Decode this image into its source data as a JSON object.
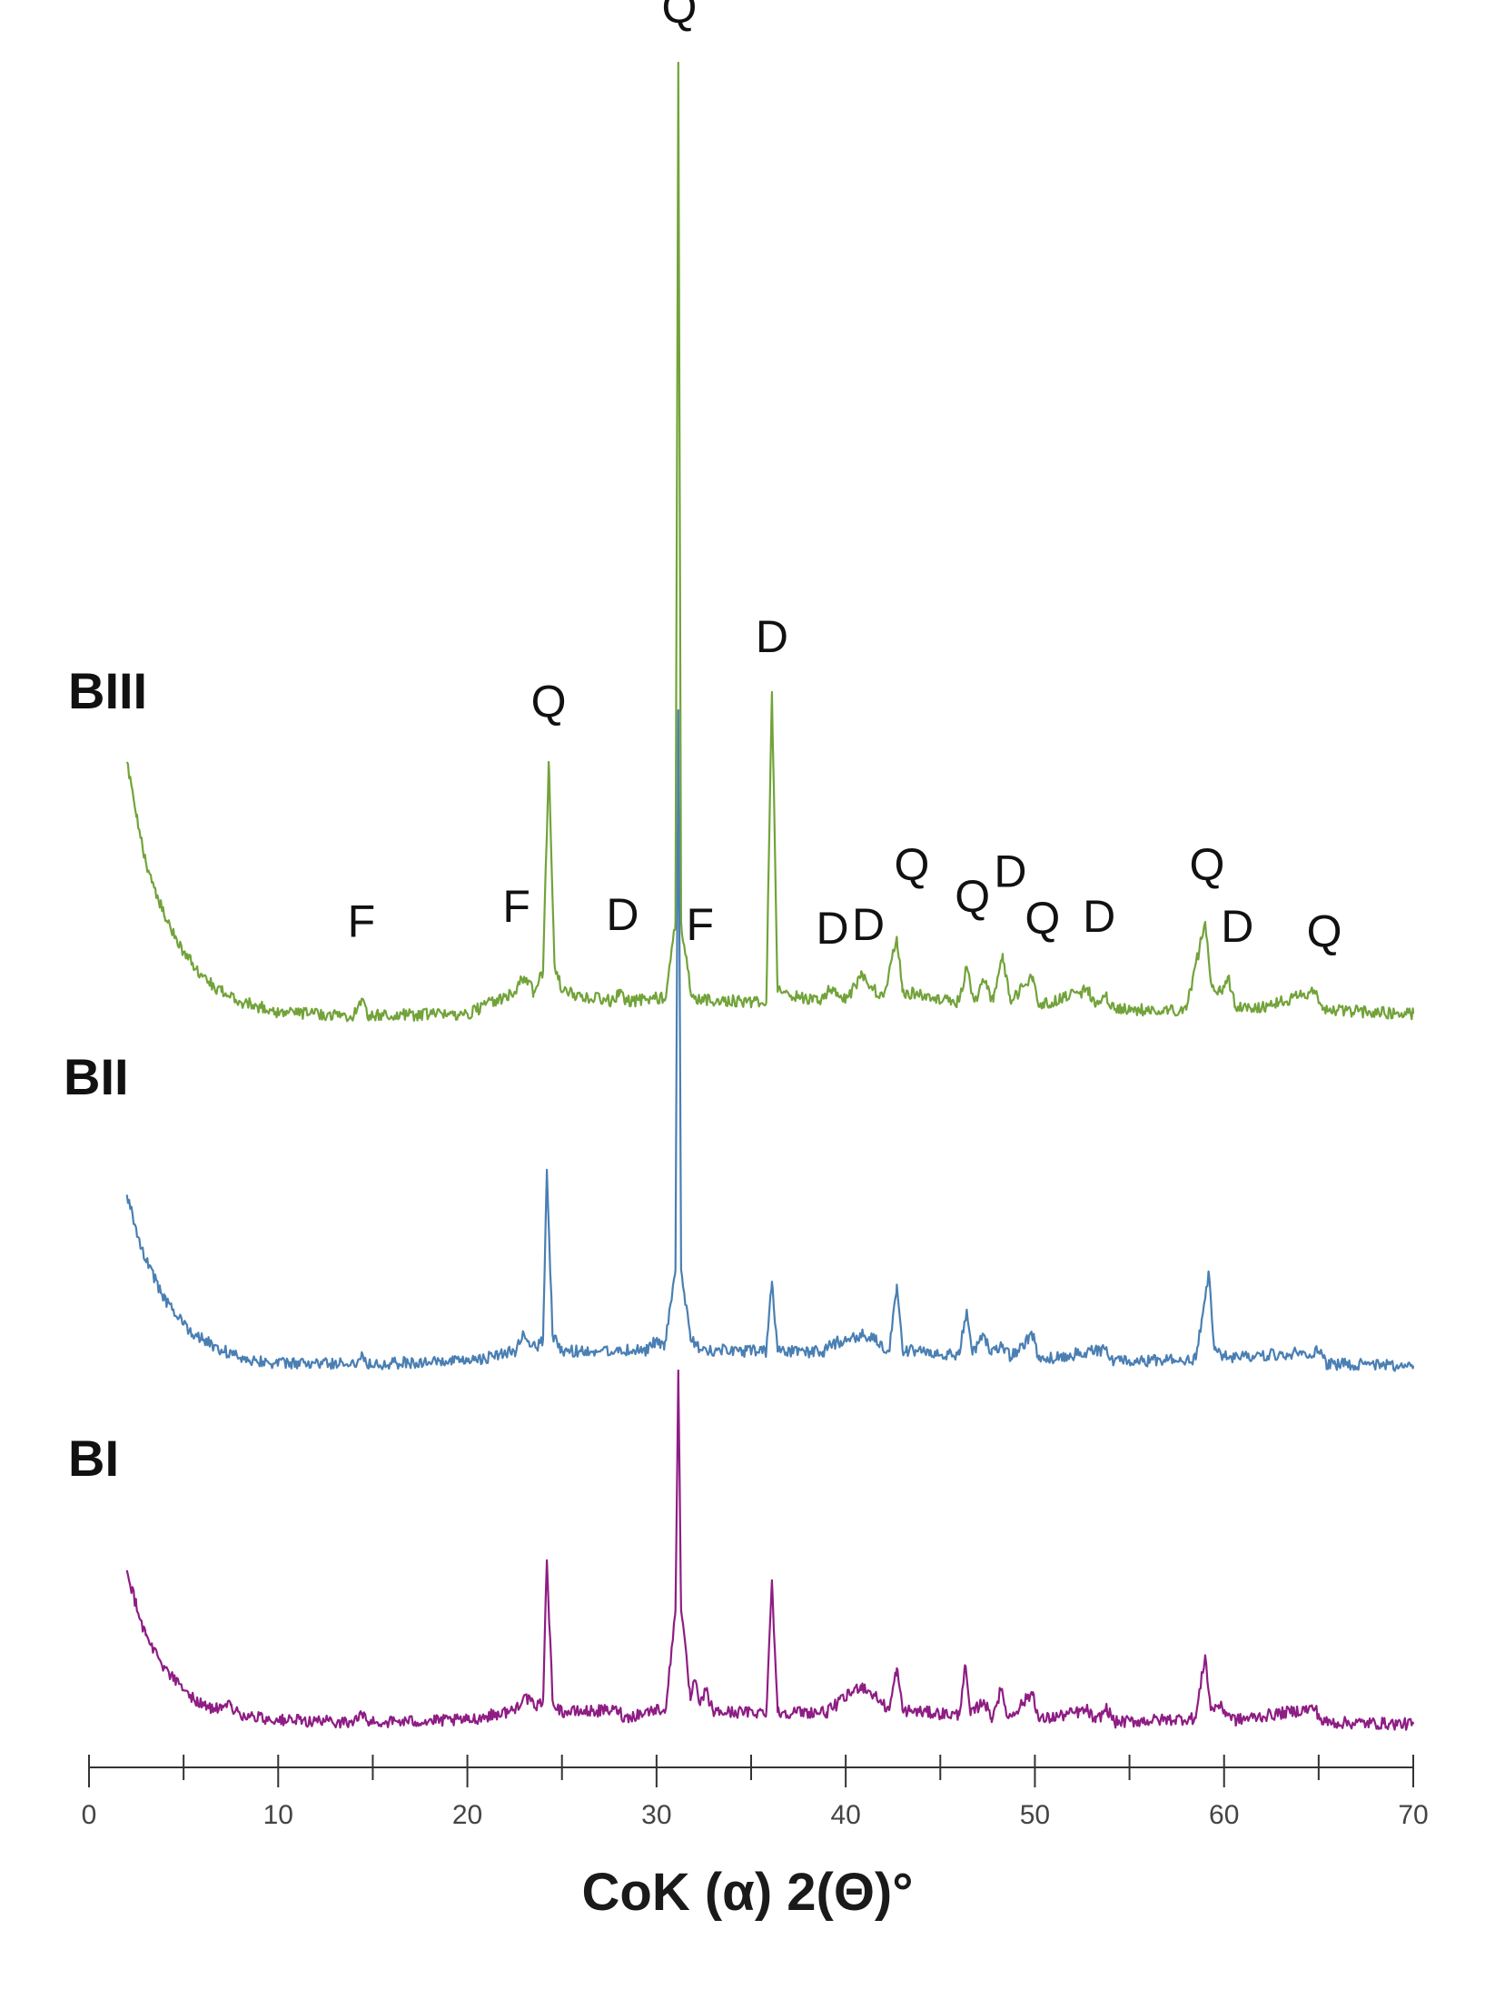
{
  "chart_data": {
    "type": "line",
    "title": "",
    "xlabel": "CoK (α) 2(Θ)°",
    "ylabel": "",
    "xlim": [
      0,
      70
    ],
    "x_ticks": [
      "0",
      "10",
      "20",
      "30",
      "40",
      "50",
      "60",
      "70"
    ],
    "grid": false,
    "legend": "none",
    "series": [
      {
        "name": "BIII",
        "color": "#72a33a",
        "baseline": 0.0,
        "points": [
          [
            2.0,
            0.26
          ],
          [
            2.5,
            0.205
          ],
          [
            3.0,
            0.16
          ],
          [
            4.0,
            0.105
          ],
          [
            5.0,
            0.07
          ],
          [
            6.0,
            0.045
          ],
          [
            7.0,
            0.03
          ],
          [
            8.0,
            0.02
          ],
          [
            10.0,
            0.01
          ],
          [
            14.0,
            0.006
          ],
          [
            14.4,
            0.022
          ],
          [
            14.8,
            0.006
          ],
          [
            20.0,
            0.008
          ],
          [
            22.5,
            0.03
          ],
          [
            23.0,
            0.045
          ],
          [
            23.5,
            0.03
          ],
          [
            24.0,
            0.05
          ],
          [
            24.3,
            0.26
          ],
          [
            24.6,
            0.06
          ],
          [
            25.0,
            0.03
          ],
          [
            27.8,
            0.02
          ],
          [
            28.0,
            0.032
          ],
          [
            28.3,
            0.02
          ],
          [
            30.5,
            0.025
          ],
          [
            31.0,
            0.1
          ],
          [
            31.15,
            0.96
          ],
          [
            31.3,
            0.1
          ],
          [
            31.8,
            0.03
          ],
          [
            32.2,
            0.022
          ],
          [
            35.8,
            0.02
          ],
          [
            36.1,
            0.33
          ],
          [
            36.4,
            0.03
          ],
          [
            38.5,
            0.02
          ],
          [
            39.2,
            0.032
          ],
          [
            40.0,
            0.022
          ],
          [
            40.8,
            0.045
          ],
          [
            41.3,
            0.035
          ],
          [
            42.0,
            0.025
          ],
          [
            42.7,
            0.085
          ],
          [
            43.0,
            0.03
          ],
          [
            46.0,
            0.02
          ],
          [
            46.4,
            0.055
          ],
          [
            46.8,
            0.02
          ],
          [
            47.3,
            0.04
          ],
          [
            47.8,
            0.02
          ],
          [
            48.3,
            0.068
          ],
          [
            48.7,
            0.02
          ],
          [
            49.9,
            0.045
          ],
          [
            50.2,
            0.015
          ],
          [
            52.8,
            0.032
          ],
          [
            53.2,
            0.015
          ],
          [
            53.8,
            0.025
          ],
          [
            54.2,
            0.012
          ],
          [
            58.0,
            0.012
          ],
          [
            59.0,
            0.1
          ],
          [
            59.3,
            0.04
          ],
          [
            59.8,
            0.03
          ],
          [
            60.2,
            0.045
          ],
          [
            60.6,
            0.015
          ],
          [
            62.0,
            0.015
          ],
          [
            64.8,
            0.03
          ],
          [
            65.2,
            0.012
          ],
          [
            70.0,
            0.008
          ]
        ]
      },
      {
        "name": "BII",
        "color": "#4a7fb3",
        "baseline": 0.0,
        "points": [
          [
            2.0,
            0.175
          ],
          [
            2.5,
            0.14
          ],
          [
            3.0,
            0.11
          ],
          [
            4.0,
            0.07
          ],
          [
            5.0,
            0.045
          ],
          [
            6.0,
            0.03
          ],
          [
            7.0,
            0.02
          ],
          [
            8.0,
            0.012
          ],
          [
            10.0,
            0.006
          ],
          [
            14.0,
            0.006
          ],
          [
            14.4,
            0.014
          ],
          [
            14.8,
            0.006
          ],
          [
            20.0,
            0.008
          ],
          [
            22.5,
            0.018
          ],
          [
            23.0,
            0.035
          ],
          [
            23.6,
            0.022
          ],
          [
            24.0,
            0.03
          ],
          [
            24.2,
            0.2
          ],
          [
            24.5,
            0.035
          ],
          [
            25.0,
            0.018
          ],
          [
            29.5,
            0.02
          ],
          [
            30.0,
            0.03
          ],
          [
            30.4,
            0.02
          ],
          [
            31.0,
            0.1
          ],
          [
            31.15,
            0.66
          ],
          [
            31.3,
            0.1
          ],
          [
            31.8,
            0.03
          ],
          [
            32.3,
            0.02
          ],
          [
            35.8,
            0.018
          ],
          [
            36.1,
            0.088
          ],
          [
            36.4,
            0.018
          ],
          [
            38.8,
            0.018
          ],
          [
            39.2,
            0.025
          ],
          [
            40.8,
            0.035
          ],
          [
            41.5,
            0.03
          ],
          [
            42.3,
            0.018
          ],
          [
            42.7,
            0.085
          ],
          [
            43.0,
            0.02
          ],
          [
            46.0,
            0.015
          ],
          [
            46.4,
            0.06
          ],
          [
            46.7,
            0.015
          ],
          [
            47.3,
            0.035
          ],
          [
            47.7,
            0.015
          ],
          [
            48.3,
            0.025
          ],
          [
            48.7,
            0.012
          ],
          [
            49.9,
            0.035
          ],
          [
            50.2,
            0.01
          ],
          [
            53.8,
            0.02
          ],
          [
            54.2,
            0.008
          ],
          [
            58.5,
            0.01
          ],
          [
            59.2,
            0.095
          ],
          [
            59.5,
            0.02
          ],
          [
            60.2,
            0.012
          ],
          [
            65.0,
            0.018
          ],
          [
            65.4,
            0.006
          ],
          [
            70.0,
            0.004
          ]
        ]
      },
      {
        "name": "BI",
        "color": "#8e1d84",
        "baseline": 0.0,
        "points": [
          [
            2.0,
            0.16
          ],
          [
            2.5,
            0.125
          ],
          [
            3.0,
            0.095
          ],
          [
            4.0,
            0.062
          ],
          [
            5.0,
            0.04
          ],
          [
            6.0,
            0.025
          ],
          [
            7.0,
            0.02
          ],
          [
            7.5,
            0.025
          ],
          [
            8.0,
            0.015
          ],
          [
            10.0,
            0.01
          ],
          [
            14.0,
            0.008
          ],
          [
            14.4,
            0.016
          ],
          [
            14.8,
            0.008
          ],
          [
            20.0,
            0.01
          ],
          [
            22.5,
            0.02
          ],
          [
            23.0,
            0.035
          ],
          [
            23.6,
            0.022
          ],
          [
            24.0,
            0.03
          ],
          [
            24.2,
            0.17
          ],
          [
            24.5,
            0.03
          ],
          [
            25.0,
            0.018
          ],
          [
            28.0,
            0.02
          ],
          [
            28.3,
            0.012
          ],
          [
            29.8,
            0.02
          ],
          [
            30.5,
            0.022
          ],
          [
            31.0,
            0.12
          ],
          [
            31.15,
            0.36
          ],
          [
            31.3,
            0.12
          ],
          [
            31.8,
            0.03
          ],
          [
            32.0,
            0.05
          ],
          [
            32.3,
            0.025
          ],
          [
            32.6,
            0.04
          ],
          [
            33.0,
            0.018
          ],
          [
            35.8,
            0.018
          ],
          [
            36.1,
            0.15
          ],
          [
            36.4,
            0.018
          ],
          [
            39.0,
            0.018
          ],
          [
            40.8,
            0.045
          ],
          [
            41.5,
            0.035
          ],
          [
            42.3,
            0.02
          ],
          [
            42.7,
            0.062
          ],
          [
            43.0,
            0.02
          ],
          [
            46.0,
            0.015
          ],
          [
            46.3,
            0.065
          ],
          [
            46.6,
            0.015
          ],
          [
            47.3,
            0.03
          ],
          [
            47.7,
            0.012
          ],
          [
            48.2,
            0.04
          ],
          [
            48.6,
            0.012
          ],
          [
            49.9,
            0.038
          ],
          [
            50.2,
            0.01
          ],
          [
            52.8,
            0.02
          ],
          [
            53.2,
            0.008
          ],
          [
            53.8,
            0.022
          ],
          [
            54.2,
            0.008
          ],
          [
            58.5,
            0.012
          ],
          [
            59.0,
            0.075
          ],
          [
            59.3,
            0.02
          ],
          [
            59.7,
            0.025
          ],
          [
            60.1,
            0.018
          ],
          [
            60.6,
            0.01
          ],
          [
            64.8,
            0.022
          ],
          [
            65.2,
            0.008
          ],
          [
            70.0,
            0.006
          ]
        ]
      }
    ],
    "annotations": [
      {
        "text": "Q",
        "x": 31.2,
        "y": 1.0
      },
      {
        "text": "Q",
        "x": 24.3,
        "y": 0.305
      },
      {
        "text": "D",
        "x": 36.1,
        "y": 0.37
      },
      {
        "text": "F",
        "x": 14.4,
        "y": 0.085
      },
      {
        "text": "F",
        "x": 22.6,
        "y": 0.1
      },
      {
        "text": "D",
        "x": 28.2,
        "y": 0.092
      },
      {
        "text": "F",
        "x": 32.3,
        "y": 0.082
      },
      {
        "text": "D",
        "x": 39.3,
        "y": 0.078
      },
      {
        "text": "D",
        "x": 41.2,
        "y": 0.082
      },
      {
        "text": "Q",
        "x": 43.5,
        "y": 0.142
      },
      {
        "text": "Q",
        "x": 46.7,
        "y": 0.11
      },
      {
        "text": "D",
        "x": 48.7,
        "y": 0.135
      },
      {
        "text": "Q",
        "x": 50.4,
        "y": 0.088
      },
      {
        "text": "D",
        "x": 53.4,
        "y": 0.09
      },
      {
        "text": "Q",
        "x": 59.1,
        "y": 0.142
      },
      {
        "text": "D",
        "x": 60.7,
        "y": 0.08
      },
      {
        "text": "Q",
        "x": 65.3,
        "y": 0.075
      }
    ]
  }
}
